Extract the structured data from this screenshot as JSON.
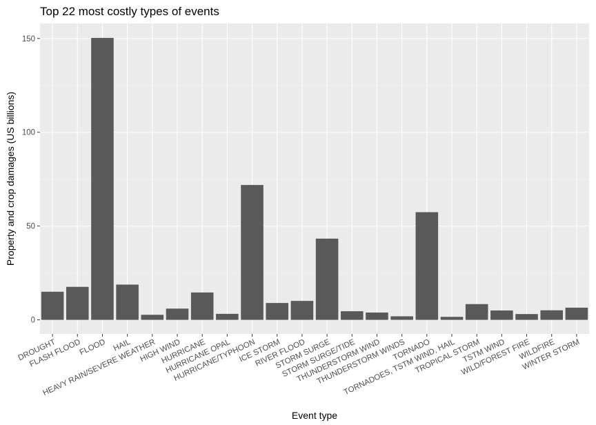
{
  "chart_data": {
    "type": "bar",
    "title": "Top 22 most costly types of events",
    "xlabel": "Event type",
    "ylabel": "Property and crop damages (US billions)",
    "categories": [
      "DROUGHT",
      "FLASH FLOOD",
      "FLOOD",
      "HAIL",
      "HEAVY RAIN/SEVERE WEATHER",
      "HIGH WIND",
      "HURRICANE",
      "HURRICANE OPAL",
      "HURRICANE/TYPHOON",
      "ICE STORM",
      "RIVER FLOOD",
      "STORM SURGE",
      "STORM SURGE/TIDE",
      "THUNDERSTORM WIND",
      "THUNDERSTORM WINDS",
      "TORNADO",
      "TORNADOES, TSTM WIND, HAIL",
      "TROPICAL STORM",
      "TSTM WIND",
      "WILD/FOREST FIRE",
      "WILDFIRE",
      "WINTER STORM"
    ],
    "values": [
      15.0,
      17.6,
      150.3,
      18.8,
      2.7,
      6.0,
      14.6,
      3.2,
      71.9,
      9.0,
      10.1,
      43.3,
      4.6,
      3.9,
      1.9,
      57.4,
      1.6,
      8.4,
      5.0,
      3.1,
      5.1,
      6.5
    ],
    "y_ticks": [
      0,
      50,
      100,
      150
    ],
    "ylim": [
      -7.5,
      158
    ],
    "grid": true,
    "colors": {
      "bar": "#595959",
      "panel": "#ebebeb",
      "grid_major": "#ffffff",
      "grid_minor": "#f5f5f5"
    }
  }
}
